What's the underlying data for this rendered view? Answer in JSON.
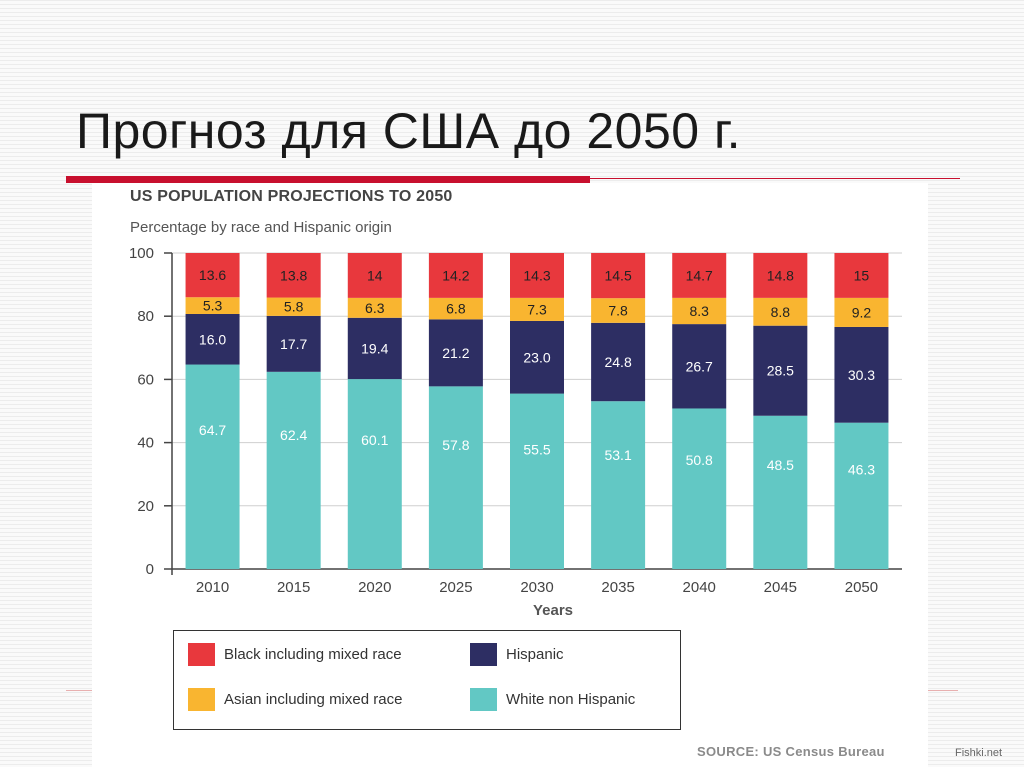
{
  "slide": {
    "title": "Прогноз для США до 2050 г."
  },
  "source": "SOURCE: US Census Bureau",
  "watermark": "Fishki.net",
  "chart_data": {
    "type": "bar",
    "stacked": true,
    "title": "US POPULATION PROJECTIONS TO 2050",
    "subtitle": "Percentage by race and Hispanic origin",
    "xlabel": "Years",
    "ylabel": "",
    "ylim": [
      0,
      100
    ],
    "yticks": [
      0,
      20,
      40,
      60,
      80,
      100
    ],
    "grid": true,
    "categories": [
      "2010",
      "2015",
      "2020",
      "2025",
      "2030",
      "2035",
      "2040",
      "2045",
      "2050"
    ],
    "series": [
      {
        "name": "White non Hispanic",
        "color": "#62c8c4",
        "label_color": "#ffffff",
        "values": [
          64.7,
          62.4,
          60.1,
          57.8,
          55.5,
          53.1,
          50.8,
          48.5,
          46.3
        ],
        "labels": [
          "64.7",
          "62.4",
          "60.1",
          "57.8",
          "55.5",
          "53.1",
          "50.8",
          "48.5",
          "46.3"
        ]
      },
      {
        "name": "Hispanic",
        "color": "#2d2e63",
        "label_color": "#ffffff",
        "values": [
          16.0,
          17.7,
          19.4,
          21.2,
          23.0,
          24.8,
          26.7,
          28.5,
          30.3
        ],
        "labels": [
          "16.0",
          "17.7",
          "19.4",
          "21.2",
          "23.0",
          "24.8",
          "26.7",
          "28.5",
          "30.3"
        ]
      },
      {
        "name": "Asian including mixed race",
        "color": "#f9b530",
        "label_color": "#222222",
        "values": [
          5.3,
          5.8,
          6.3,
          6.8,
          7.3,
          7.8,
          8.3,
          8.8,
          9.2
        ],
        "labels": [
          "5.3",
          "5.8",
          "6.3",
          "6.8",
          "7.3",
          "7.8",
          "8.3",
          "8.8",
          "9.2"
        ]
      },
      {
        "name": "Black including mixed race",
        "color": "#e8383d",
        "label_color": "#222222",
        "values": [
          13.6,
          13.8,
          14,
          14.2,
          14.3,
          14.5,
          14.7,
          14.8,
          15
        ],
        "labels": [
          "13.6",
          "13.8",
          "14",
          "14.2",
          "14.3",
          "14.5",
          "14.7",
          "14.8",
          "15"
        ]
      }
    ],
    "legend": {
      "placement": "bottom",
      "entries": [
        {
          "name": "Black including mixed race",
          "color": "#e8383d"
        },
        {
          "name": "Hispanic",
          "color": "#2d2e63"
        },
        {
          "name": "Asian including mixed race",
          "color": "#f9b530"
        },
        {
          "name": "White non Hispanic",
          "color": "#62c8c4"
        }
      ]
    }
  }
}
